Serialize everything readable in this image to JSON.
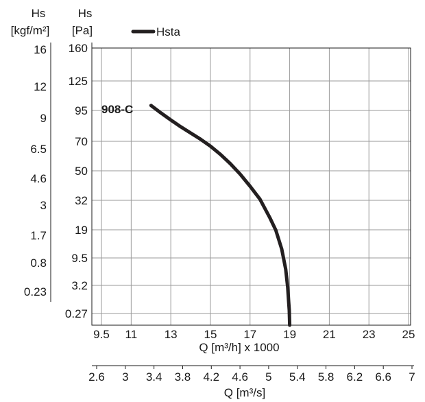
{
  "chart_data": {
    "type": "line",
    "series": [
      {
        "name": "Hsta",
        "x": [
          12.0,
          12.5,
          13.0,
          13.5,
          14.0,
          14.5,
          15.0,
          15.5,
          16.0,
          16.5,
          17.0,
          17.5,
          18.0,
          18.3,
          18.6,
          18.8,
          18.9,
          18.95,
          18.98,
          19.0
        ],
        "y": [
          100,
          93,
          87.3,
          81.8,
          76.7,
          71.7,
          66.7,
          61.2,
          54.9,
          48.0,
          40.6,
          32.7,
          24.3,
          18.9,
          12.5,
          6.9,
          3.0,
          1.5,
          0.6,
          0
        ]
      }
    ],
    "model_label": "908-C",
    "x_axis_main": {
      "label": "Q [m³/h] x 1000",
      "ticks": [
        9.5,
        11,
        13,
        15,
        17,
        19,
        21,
        23,
        25
      ],
      "tick_labels": [
        "9.5",
        "11",
        "13",
        "15",
        "17",
        "19",
        "21",
        "23",
        "25"
      ],
      "range": [
        9.5,
        25
      ],
      "grid": true
    },
    "x_axis_secondary": {
      "label": "Q [m³/s]",
      "tick_labels": [
        "2.6",
        "3",
        "3.4",
        "3.8",
        "4.2",
        "4.6",
        "5",
        "5.4",
        "5.8",
        "6.2",
        "6.6",
        "7"
      ]
    },
    "y_axis_pa": {
      "title_line1": "Hs",
      "title_line2": "[Pa]",
      "tick_labels": [
        "160",
        "125",
        "95",
        "70",
        "50",
        "32",
        "19",
        "9.5",
        "3.2",
        "0.27"
      ],
      "tick_values": [
        160,
        125,
        95,
        70,
        50,
        32,
        19,
        9.5,
        3.2,
        0.27
      ],
      "grid": true
    },
    "y_axis_kgf": {
      "title_line1": "Hs",
      "title_line2": "[kgf/m²]",
      "tick_labels": [
        "16",
        "12",
        "9",
        "6.5",
        "4.6",
        "3",
        "1.7",
        "0.8",
        "0.23"
      ]
    },
    "legend_placement": "top",
    "colors": {
      "curve": "#231f20",
      "grid": "#9a9a9a",
      "axis": "#1a1a1a"
    }
  }
}
